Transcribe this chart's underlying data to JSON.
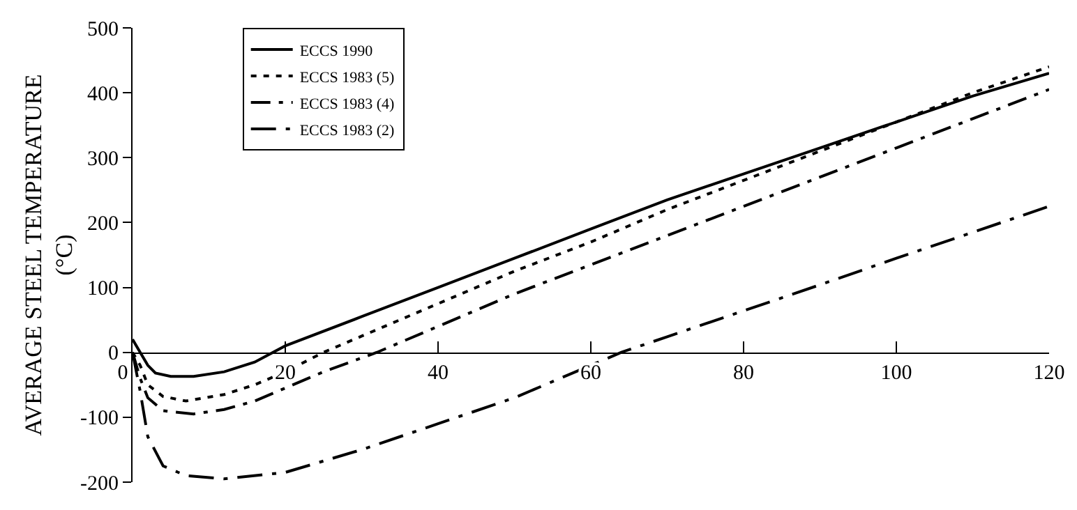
{
  "chart_data": {
    "type": "line",
    "ylabel": "AVERAGE STEEL TEMPERATURE\n(°C)",
    "xlim": [
      0,
      120
    ],
    "xticks": [
      0,
      20,
      40,
      60,
      80,
      100,
      120
    ],
    "ylim": [
      -200,
      500
    ],
    "yticks": [
      -200,
      -100,
      0,
      100,
      200,
      300,
      400,
      500
    ],
    "grid": false,
    "legend": "top left",
    "marker": "none",
    "series": [
      {
        "name": "ECCS 1990",
        "color": "#000000",
        "line_style": "solid",
        "x": [
          0,
          1,
          2,
          3,
          5,
          8,
          12,
          16,
          20,
          30,
          40,
          50,
          60,
          70,
          80,
          90,
          100,
          110,
          120
        ],
        "values": [
          20,
          0,
          -20,
          -32,
          -37,
          -37,
          -30,
          -15,
          10,
          55,
          100,
          145,
          190,
          235,
          275,
          315,
          355,
          395,
          430
        ]
      },
      {
        "name": "ECCS 1983 (5)",
        "color": "#000000",
        "line_style": "dotted",
        "x": [
          0,
          1,
          2,
          4,
          7,
          12,
          16,
          20,
          25,
          30,
          40,
          50,
          60,
          70,
          80,
          90,
          100,
          110,
          120
        ],
        "values": [
          0,
          -20,
          -50,
          -68,
          -75,
          -65,
          -50,
          -30,
          0,
          25,
          75,
          125,
          170,
          220,
          265,
          310,
          355,
          400,
          440
        ]
      },
      {
        "name": "ECCS 1983 (4)",
        "color": "#000000",
        "line_style": "dashdot",
        "x": [
          0,
          1,
          2,
          4,
          8,
          12,
          16,
          20,
          25,
          32,
          40,
          50,
          60,
          70,
          80,
          90,
          100,
          110,
          120
        ],
        "values": [
          0,
          -40,
          -70,
          -90,
          -95,
          -88,
          -75,
          -55,
          -30,
          0,
          40,
          90,
          135,
          180,
          225,
          270,
          315,
          360,
          405
        ]
      },
      {
        "name": "ECCS 1983 (2)",
        "color": "#000000",
        "line_style": "longdashdot",
        "x": [
          0,
          1,
          2,
          4,
          7,
          12,
          20,
          30,
          40,
          50,
          60,
          64,
          70,
          80,
          90,
          100,
          110,
          120
        ],
        "values": [
          0,
          -60,
          -130,
          -175,
          -190,
          -195,
          -185,
          -150,
          -110,
          -70,
          -20,
          0,
          24,
          64,
          104,
          145,
          185,
          225
        ]
      }
    ]
  }
}
